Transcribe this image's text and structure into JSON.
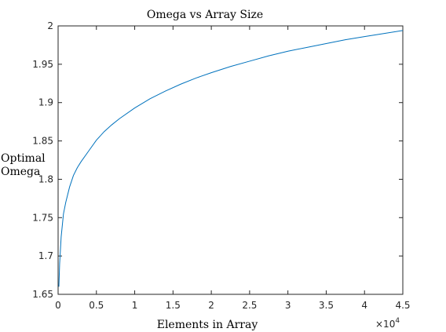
{
  "chart_data": {
    "type": "line",
    "title": "Omega vs Array Size",
    "xlabel": "Elements in Array",
    "ylabel_lines": [
      "Optimal",
      "Omega"
    ],
    "xlim": [
      0,
      45000
    ],
    "ylim": [
      1.65,
      2
    ],
    "x_scale_note": {
      "base": "×10",
      "exponent": "4"
    },
    "x_ticks": [
      {
        "value": 0,
        "label": "0"
      },
      {
        "value": 5000,
        "label": "0.5"
      },
      {
        "value": 10000,
        "label": "1"
      },
      {
        "value": 15000,
        "label": "1.5"
      },
      {
        "value": 20000,
        "label": "2"
      },
      {
        "value": 25000,
        "label": "2.5"
      },
      {
        "value": 30000,
        "label": "3"
      },
      {
        "value": 35000,
        "label": "3.5"
      },
      {
        "value": 40000,
        "label": "4"
      },
      {
        "value": 45000,
        "label": "4.5"
      }
    ],
    "y_ticks": [
      {
        "value": 1.65,
        "label": "1.65"
      },
      {
        "value": 1.7,
        "label": "1.7"
      },
      {
        "value": 1.75,
        "label": "1.75"
      },
      {
        "value": 1.8,
        "label": "1.8"
      },
      {
        "value": 1.85,
        "label": "1.85"
      },
      {
        "value": 1.9,
        "label": "1.9"
      },
      {
        "value": 1.95,
        "label": "1.95"
      },
      {
        "value": 2,
        "label": "2"
      }
    ],
    "grid": false,
    "line_color": "#0072bd",
    "series": [
      {
        "x": [
          100,
          200,
          400,
          700,
          1000,
          1500,
          2000,
          2500,
          3000,
          4000,
          5000,
          6000,
          7000,
          8000,
          10000,
          12000,
          14000,
          16000,
          18000,
          20000,
          22500,
          25000,
          27500,
          30000,
          32500,
          35000,
          37500,
          40000,
          42500,
          45000
        ],
        "values": [
          1.66,
          1.69,
          1.725,
          1.755,
          1.77,
          1.79,
          1.805,
          1.815,
          1.823,
          1.837,
          1.851,
          1.862,
          1.871,
          1.879,
          1.893,
          1.905,
          1.915,
          1.924,
          1.932,
          1.939,
          1.947,
          1.954,
          1.961,
          1.967,
          1.972,
          1.977,
          1.982,
          1.986,
          1.99,
          1.994
        ]
      }
    ]
  }
}
